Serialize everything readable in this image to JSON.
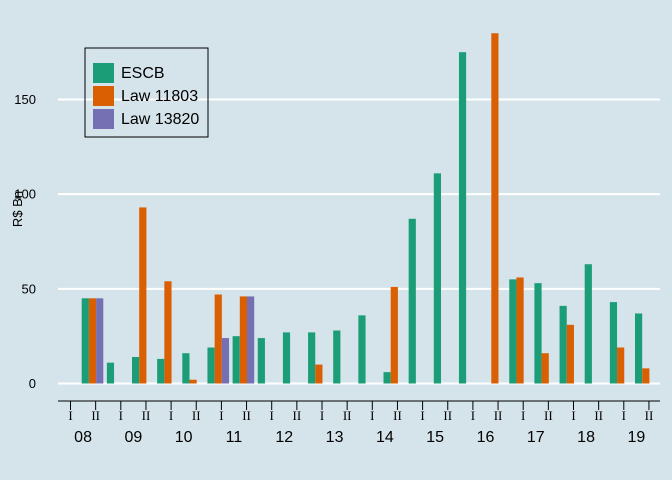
{
  "chart_data": {
    "type": "bar",
    "ylabel": "R$ Bn",
    "ylim": [
      -10,
      190
    ],
    "yticks": [
      0,
      50,
      100,
      150
    ],
    "grid": true,
    "legend_position": "top-left",
    "years": [
      "08",
      "09",
      "10",
      "11",
      "12",
      "13",
      "14",
      "15",
      "16",
      "17",
      "18",
      "19"
    ],
    "half_labels": [
      "I",
      "II"
    ],
    "periods": [
      "2008-I",
      "2008-II",
      "2009-I",
      "2009-II",
      "2010-I",
      "2010-II",
      "2011-I",
      "2011-II",
      "2012-I",
      "2012-II",
      "2013-I",
      "2013-II",
      "2014-I",
      "2014-II",
      "2015-I",
      "2015-II",
      "2016-I",
      "2016-II",
      "2017-I",
      "2017-II",
      "2018-I",
      "2018-II",
      "2019-I",
      "2019-II"
    ],
    "series": [
      {
        "name": "ESCB",
        "color": "#1b9e77",
        "values": [
          45,
          11,
          14,
          13,
          16,
          19,
          25,
          24,
          27,
          27,
          28,
          36,
          6,
          87,
          111,
          175,
          0,
          55,
          53,
          41,
          63,
          43,
          37,
          0
        ]
      },
      {
        "name": "Law 11803",
        "color": "#d95f02",
        "values": [
          45,
          0,
          93,
          54,
          2,
          47,
          46,
          0,
          0,
          10,
          0,
          0,
          51,
          0,
          0,
          0,
          185,
          56,
          16,
          31,
          0,
          19,
          8,
          0
        ]
      },
      {
        "name": "Law 13820",
        "color": "#7570b3",
        "values": [
          45,
          0,
          0,
          0,
          0,
          24,
          46,
          0,
          0,
          0,
          0,
          0,
          0,
          0,
          0,
          0,
          0,
          0,
          0,
          0,
          0,
          0,
          0,
          0
        ]
      }
    ]
  }
}
